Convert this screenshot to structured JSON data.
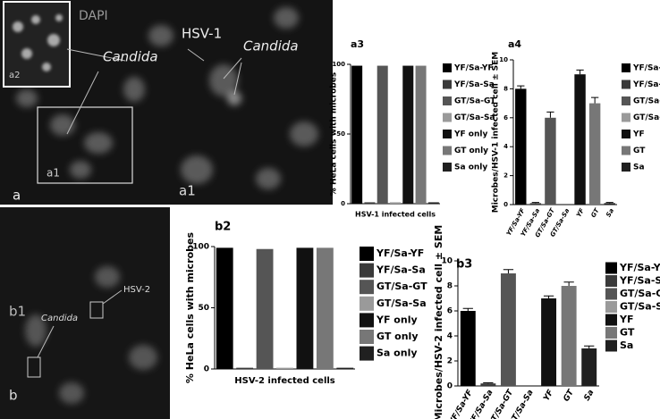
{
  "images": {
    "labels": [
      "DAPI",
      "a2",
      "Candida",
      "HSV-1",
      "Candida",
      "a1",
      "a",
      "a1",
      "b1",
      "HSV-2",
      "Candida",
      "b"
    ]
  },
  "chart_data": [
    {
      "type": "grouped-bar",
      "title": "a3",
      "ylabel": "% HeLa cells with microbes",
      "xlabel": "HSV-1 infected cells",
      "categories": [
        "HSV-1 infected cells"
      ],
      "series": [
        {
          "name": "YF/Sa-YF",
          "color": "#000000",
          "values": [
            99
          ]
        },
        {
          "name": "YF/Sa-Sa",
          "color": "#3a3a3a",
          "values": [
            1
          ]
        },
        {
          "name": "GT/Sa-GT",
          "color": "#555555",
          "values": [
            99
          ]
        },
        {
          "name": "GT/Sa-Sa",
          "color": "#9a9a9a",
          "values": [
            1
          ]
        },
        {
          "name": "YF only",
          "color": "#111111",
          "values": [
            99
          ]
        },
        {
          "name": "GT only",
          "color": "#777777",
          "values": [
            99
          ]
        },
        {
          "name": "Sa only",
          "color": "#202020",
          "values": [
            1
          ]
        }
      ],
      "ylim": [
        0,
        100
      ],
      "yticks": [
        0,
        50,
        100
      ]
    },
    {
      "type": "bar",
      "title": "a4",
      "ylabel": "Microbes/HSV-1 infected cell ± SEM",
      "categories": [
        "YF/Sa-YF",
        "YF/Sa-Sa",
        "GT/Sa-GT",
        "GT/Sa-Sa",
        "YF",
        "GT",
        "Sa"
      ],
      "values": [
        8,
        0.1,
        6,
        0,
        9,
        7,
        0.1
      ],
      "errors": [
        0.2,
        0.05,
        0.4,
        0,
        0.3,
        0.4,
        0.05
      ],
      "legend": [
        "YF/Sa-YF",
        "YF/Sa-Sa",
        "GT/Sa-GT",
        "GT/Sa-Sa",
        "YF",
        "GT",
        "Sa"
      ],
      "colors": [
        "#000000",
        "#3a3a3a",
        "#555555",
        "#9a9a9a",
        "#111111",
        "#777777",
        "#202020"
      ],
      "ylim": [
        0,
        10
      ],
      "yticks": [
        0,
        2,
        4,
        6,
        8,
        10
      ]
    },
    {
      "type": "grouped-bar",
      "title": "b2",
      "ylabel": "% HeLa cells with microbes",
      "xlabel": "HSV-2 infected cells",
      "categories": [
        "HSV-2 infected cells"
      ],
      "series": [
        {
          "name": "YF/Sa-YF",
          "color": "#000000",
          "values": [
            99
          ]
        },
        {
          "name": "YF/Sa-Sa",
          "color": "#3a3a3a",
          "values": [
            1
          ]
        },
        {
          "name": "GT/Sa-GT",
          "color": "#555555",
          "values": [
            98
          ]
        },
        {
          "name": "GT/Sa-Sa",
          "color": "#9a9a9a",
          "values": [
            1
          ]
        },
        {
          "name": "YF only",
          "color": "#111111",
          "values": [
            99
          ]
        },
        {
          "name": "GT only",
          "color": "#777777",
          "values": [
            99
          ]
        },
        {
          "name": "Sa only",
          "color": "#202020",
          "values": [
            1
          ]
        }
      ],
      "ylim": [
        0,
        100
      ],
      "yticks": [
        0,
        50,
        100
      ]
    },
    {
      "type": "bar",
      "title": "b3",
      "ylabel": "Microbes/HSV-2 infected cell ± SEM",
      "categories": [
        "YF/Sa-YF",
        "YF/Sa-Sa",
        "GT/Sa-GT",
        "GT/Sa-Sa",
        "YF",
        "GT",
        "Sa"
      ],
      "values": [
        6,
        0.2,
        9,
        0,
        7,
        8,
        3
      ],
      "errors": [
        0.2,
        0.05,
        0.3,
        0,
        0.2,
        0.3,
        0.2
      ],
      "legend": [
        "YF/Sa-YF",
        "YF/Sa-Sa",
        "GT/Sa-GT",
        "GT/Sa-Sa",
        "YF",
        "GT",
        "Sa"
      ],
      "colors": [
        "#000000",
        "#3a3a3a",
        "#555555",
        "#9a9a9a",
        "#111111",
        "#777777",
        "#202020"
      ],
      "ylim": [
        0,
        10
      ],
      "yticks": [
        0,
        2,
        4,
        6,
        8,
        10
      ]
    }
  ]
}
